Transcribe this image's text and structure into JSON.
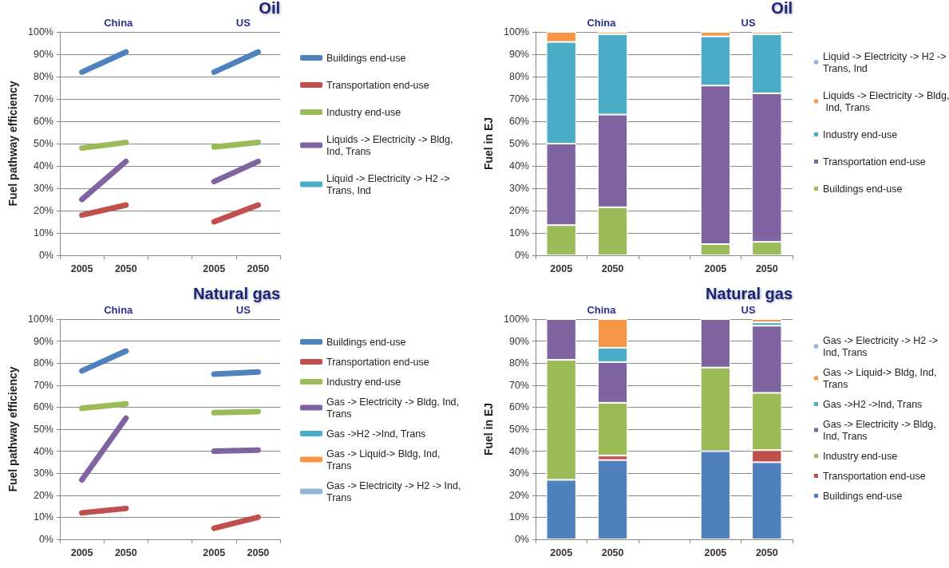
{
  "chart_data": [
    {
      "type": "line",
      "title": "Oil",
      "ylabel": "Fuel pathway efficiency",
      "annotations": [
        "China",
        "US"
      ],
      "categories": [
        "2005",
        "2050",
        null,
        "2005",
        "2050"
      ],
      "series": [
        {
          "name": "Buildings end-use",
          "color": "#4f81bd",
          "values": [
            82,
            91,
            null,
            82,
            91
          ]
        },
        {
          "name": "Transportation end-use",
          "color": "#c0504d",
          "values": [
            18,
            22.5,
            null,
            15,
            22.5
          ]
        },
        {
          "name": "Industry end-use",
          "color": "#9bbb59",
          "values": [
            48,
            50.5,
            null,
            48.5,
            50.5
          ]
        },
        {
          "name": "Liquids -> Electricity -> Bldg, Ind, Trans",
          "color": "#8064a2",
          "values": [
            25,
            42,
            null,
            33,
            42
          ]
        },
        {
          "name": "Liquid -> Electricity -> H2 -> Trans, Ind",
          "color": "#4bacc6",
          "values": [
            null,
            null,
            null,
            null,
            null
          ]
        }
      ],
      "ylim": [
        0,
        100
      ],
      "yticks": [
        {
          "value": 0,
          "label": "0%"
        },
        {
          "value": 10,
          "label": "10%"
        },
        {
          "value": 20,
          "label": "20%"
        },
        {
          "value": 30,
          "label": "30%"
        },
        {
          "value": 40,
          "label": "40%"
        },
        {
          "value": 50,
          "label": "50%"
        },
        {
          "value": 60,
          "label": "60%"
        },
        {
          "value": 70,
          "label": "70%"
        },
        {
          "value": 80,
          "label": "80%"
        },
        {
          "value": 90,
          "label": "90%"
        },
        {
          "value": 100,
          "label": "100%"
        }
      ],
      "grid": "y",
      "legend": "right",
      "marker": "none"
    },
    {
      "type": "bar",
      "stacked": true,
      "title": "Oil",
      "ylabel": "Fuel in EJ",
      "annotations": [
        "China",
        "US"
      ],
      "categories": [
        "2005",
        "2050",
        null,
        "2005",
        "2050"
      ],
      "series": [
        {
          "name": "Buildings end-use",
          "color": "#9bbb59",
          "values": [
            13.5,
            21.5,
            null,
            5,
            6
          ]
        },
        {
          "name": "Transportation end-use",
          "color": "#8064a2",
          "values": [
            36.5,
            41.5,
            null,
            71,
            66.5
          ]
        },
        {
          "name": "Industry end-use",
          "color": "#4bacc6",
          "values": [
            45.5,
            36,
            null,
            22,
            26.5
          ]
        },
        {
          "name": "Liquids -> Electricity -> Bldg, Ind, Trans",
          "color": "#f79646",
          "values": [
            4.5,
            1,
            null,
            2,
            1
          ]
        },
        {
          "name": "Liquid -> Electricity -> H2 -> Trans, Ind",
          "color": "#95b3d7",
          "values": [
            null,
            null,
            null,
            null,
            null
          ]
        }
      ],
      "ylim": [
        0,
        100
      ],
      "yticks": [
        {
          "value": 0,
          "label": "0%"
        },
        {
          "value": 10,
          "label": "10%"
        },
        {
          "value": 20,
          "label": "20%"
        },
        {
          "value": 30,
          "label": "30%"
        },
        {
          "value": 40,
          "label": "40%"
        },
        {
          "value": 50,
          "label": "50%"
        },
        {
          "value": 60,
          "label": "60%"
        },
        {
          "value": 70,
          "label": "70%"
        },
        {
          "value": 80,
          "label": "80%"
        },
        {
          "value": 90,
          "label": "90%"
        },
        {
          "value": 100,
          "label": "100%"
        }
      ],
      "grid": "y",
      "legend": "right"
    },
    {
      "type": "line",
      "title": "Natural gas",
      "ylabel": "Fuel pathway efficiency",
      "annotations": [
        "China",
        "US"
      ],
      "categories": [
        "2005",
        "2050",
        null,
        "2005",
        "2050"
      ],
      "series": [
        {
          "name": "Buildings end-use",
          "color": "#4f81bd",
          "values": [
            76.5,
            85.5,
            null,
            75,
            76
          ]
        },
        {
          "name": "Transportation end-use",
          "color": "#c0504d",
          "values": [
            12,
            14,
            null,
            5,
            10
          ]
        },
        {
          "name": "Industry end-use",
          "color": "#9bbb59",
          "values": [
            59.5,
            61.5,
            null,
            57.5,
            58
          ]
        },
        {
          "name": "Gas -> Electricity -> Bldg, Ind, Trans",
          "color": "#8064a2",
          "values": [
            27,
            55,
            null,
            40,
            40.5
          ]
        },
        {
          "name": "Gas ->H2 ->Ind, Trans",
          "color": "#4bacc6",
          "values": [
            null,
            null,
            null,
            null,
            null
          ]
        },
        {
          "name": "Gas -> Liquid-> Bldg, Ind, Trans",
          "color": "#f79646",
          "values": [
            null,
            null,
            null,
            null,
            null
          ]
        },
        {
          "name": "Gas -> Electricity -> H2 -> Ind, Trans",
          "color": "#95b3d7",
          "values": [
            null,
            null,
            null,
            null,
            null
          ]
        }
      ],
      "ylim": [
        0,
        100
      ],
      "yticks": [
        {
          "value": 0,
          "label": "0%"
        },
        {
          "value": 10,
          "label": "10%"
        },
        {
          "value": 20,
          "label": "20%"
        },
        {
          "value": 30,
          "label": "30%"
        },
        {
          "value": 40,
          "label": "40%"
        },
        {
          "value": 50,
          "label": "50%"
        },
        {
          "value": 60,
          "label": "60%"
        },
        {
          "value": 70,
          "label": "70%"
        },
        {
          "value": 80,
          "label": "80%"
        },
        {
          "value": 90,
          "label": "90%"
        },
        {
          "value": 100,
          "label": "100%"
        }
      ],
      "grid": "y",
      "legend": "right",
      "marker": "none"
    },
    {
      "type": "bar",
      "stacked": true,
      "title": "Natural gas",
      "ylabel": "Fuel in EJ",
      "annotations": [
        "China",
        "US"
      ],
      "categories": [
        "2005",
        "2050",
        null,
        "2005",
        "2050"
      ],
      "series": [
        {
          "name": "Buildings end-use",
          "color": "#4f81bd",
          "values": [
            27,
            36,
            null,
            40,
            35
          ]
        },
        {
          "name": "Transportation end-use",
          "color": "#c0504d",
          "values": [
            null,
            2,
            null,
            null,
            5.5
          ]
        },
        {
          "name": "Industry end-use",
          "color": "#9bbb59",
          "values": [
            54.5,
            24,
            null,
            38,
            26
          ]
        },
        {
          "name": "Gas -> Electricity -> Bldg, Ind, Trans",
          "color": "#8064a2",
          "values": [
            18.5,
            18.5,
            null,
            22,
            30.5
          ]
        },
        {
          "name": "Gas ->H2 ->Ind, Trans",
          "color": "#4bacc6",
          "values": [
            null,
            6.5,
            null,
            null,
            1.5
          ]
        },
        {
          "name": "Gas -> Liquid-> Bldg, Ind, Trans",
          "color": "#f79646",
          "values": [
            null,
            13,
            null,
            null,
            1.5
          ]
        },
        {
          "name": "Gas -> Electricity -> H2 -> Ind, Trans",
          "color": "#95b3d7",
          "values": [
            null,
            null,
            null,
            null,
            null
          ]
        }
      ],
      "ylim": [
        0,
        100
      ],
      "yticks": [
        {
          "value": 0,
          "label": "0%"
        },
        {
          "value": 10,
          "label": "10%"
        },
        {
          "value": 20,
          "label": "20%"
        },
        {
          "value": 30,
          "label": "30%"
        },
        {
          "value": 40,
          "label": "40%"
        },
        {
          "value": 50,
          "label": "50%"
        },
        {
          "value": 60,
          "label": "60%"
        },
        {
          "value": 70,
          "label": "70%"
        },
        {
          "value": 80,
          "label": "80%"
        },
        {
          "value": 90,
          "label": "90%"
        },
        {
          "value": 100,
          "label": "100%"
        }
      ],
      "grid": "y",
      "legend": "right"
    }
  ]
}
